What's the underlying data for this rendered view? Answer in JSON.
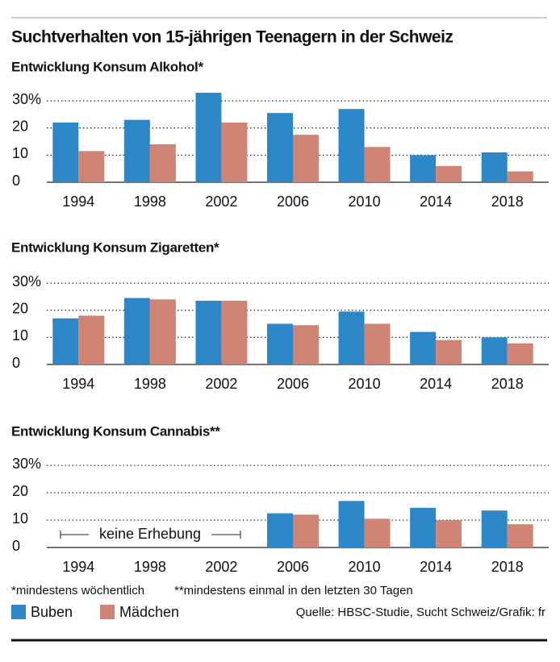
{
  "title": "Suchtverhalten von 15-jährigen Teenagern in der Schweiz",
  "chart_data": [
    {
      "type": "bar",
      "title": "Entwicklung Konsum Alkohol*",
      "categories": [
        "1994",
        "1998",
        "2002",
        "2006",
        "2010",
        "2014",
        "2018"
      ],
      "series": [
        {
          "values": [
            22,
            23,
            33,
            25.5,
            27,
            10,
            11
          ]
        },
        {
          "values": [
            11.5,
            14,
            22,
            17.5,
            13,
            6,
            4
          ]
        }
      ],
      "ylim": [
        0,
        33
      ],
      "yticks": [
        0,
        10,
        20,
        {
          "value": 30,
          "label": "30%"
        }
      ],
      "grid": true
    },
    {
      "type": "bar",
      "title": "Entwicklung Konsum Zigaretten*",
      "categories": [
        "1994",
        "1998",
        "2002",
        "2006",
        "2010",
        "2014",
        "2018"
      ],
      "series": [
        {
          "values": [
            17,
            24.5,
            23.5,
            15,
            19.5,
            12,
            10
          ]
        },
        {
          "values": [
            18,
            24,
            23.5,
            14.5,
            15,
            9,
            7.8
          ]
        }
      ],
      "ylim": [
        0,
        33
      ],
      "yticks": [
        0,
        10,
        20,
        {
          "value": 30,
          "label": "30%"
        }
      ],
      "grid": true
    },
    {
      "type": "bar",
      "title": "Entwicklung Konsum Cannabis**",
      "categories": [
        "1994",
        "1998",
        "2002",
        "2006",
        "2010",
        "2014",
        "2018"
      ],
      "series": [
        {
          "values": [
            null,
            null,
            null,
            12.5,
            17,
            14.5,
            13.5
          ]
        },
        {
          "values": [
            null,
            null,
            null,
            12,
            10.5,
            10,
            8.5
          ]
        }
      ],
      "ylim": [
        0,
        33
      ],
      "yticks": [
        0,
        10,
        20,
        {
          "value": 30,
          "label": "30%"
        }
      ],
      "grid": true,
      "annotation": "keine Erhebung"
    }
  ],
  "legend": [
    {
      "name": "Buben",
      "color": "#2b87c8"
    },
    {
      "name": "Mädchen",
      "color": "#cf8474"
    }
  ],
  "footnotes": [
    "*mindestens wöchentlich",
    "**mindestens einmal in den letzten 30 Tagen"
  ],
  "source": "Quelle: HBSC-Studie, Sucht Schweiz/Grafik: fr"
}
